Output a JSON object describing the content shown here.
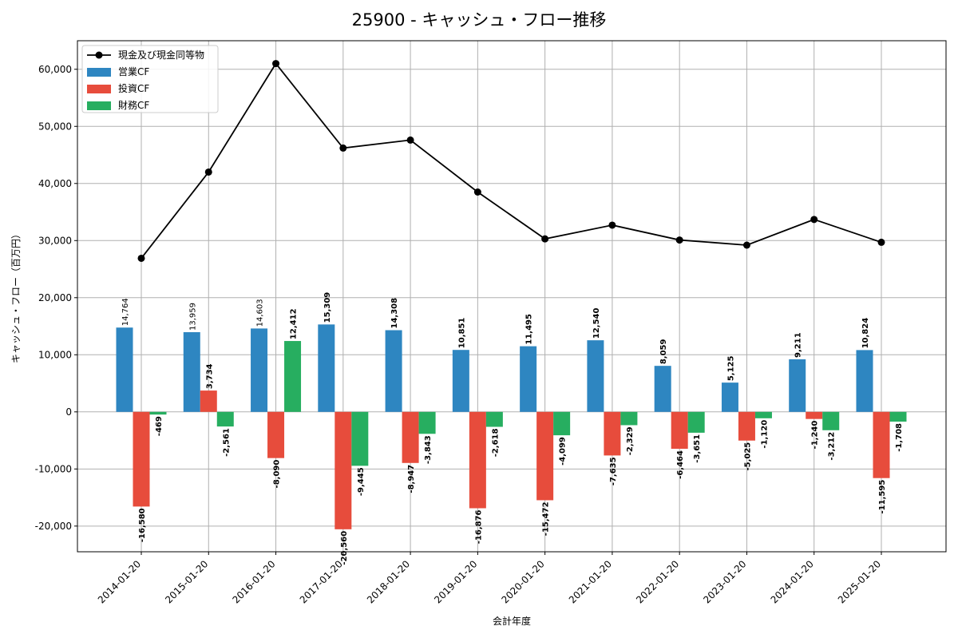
{
  "chart_data": {
    "type": "bar",
    "title": "25900 - キャッシュ・フロー推移",
    "xlabel": "会計年度",
    "ylabel": "キャッシュ・フロー（百万円）",
    "ylim": [
      -24500,
      65000
    ],
    "yticks": [
      -20000,
      -10000,
      0,
      10000,
      20000,
      30000,
      40000,
      50000,
      60000
    ],
    "ytick_labels": [
      "-20,000",
      "-10,000",
      "0",
      "10,000",
      "20,000",
      "30,000",
      "40,000",
      "50,000",
      "60,000"
    ],
    "grid": true,
    "legend_placement": "top-left",
    "categories": [
      "2014-01-20",
      "2015-01-20",
      "2016-01-20",
      "2017-01-20",
      "2018-01-20",
      "2019-01-20",
      "2020-01-20",
      "2021-01-20",
      "2022-01-20",
      "2023-01-20",
      "2024-01-20",
      "2025-01-20"
    ],
    "series": [
      {
        "name": "営業CF",
        "kind": "bar",
        "color": "#2e86c1",
        "values": [
          14764,
          13959,
          14603,
          15309,
          14308,
          10851,
          11495,
          12540,
          8059,
          5125,
          9211,
          10824
        ],
        "labels": [
          "14,764",
          "13,959",
          "14,603",
          "15,309",
          "14,308",
          "10,851",
          "11,495",
          "12,540",
          "8,059",
          "5,125",
          "9,211",
          "10,824"
        ]
      },
      {
        "name": "投資CF",
        "kind": "bar",
        "color": "#e74c3c",
        "values": [
          -16580,
          3734,
          -8090,
          -20560,
          -8947,
          -16876,
          -15472,
          -7635,
          -6464,
          -5025,
          -1240,
          -11595
        ],
        "labels": [
          "-16,580",
          "3,734",
          "-8,090",
          "-20,560",
          "-8,947",
          "-16,876",
          "-15,472",
          "-7,635",
          "-6,464",
          "-5,025",
          "-1,240",
          "-11,595"
        ]
      },
      {
        "name": "財務CF",
        "kind": "bar",
        "color": "#27ae60",
        "values": [
          -469,
          -2561,
          12412,
          -9445,
          -3843,
          -2618,
          -4099,
          -2329,
          -3651,
          -1120,
          -3212,
          -1708
        ],
        "labels": [
          "-469",
          "-2,561",
          "12,412",
          "-9,445",
          "-3,843",
          "-2,618",
          "-4,099",
          "-2,329",
          "-3,651",
          "-1,120",
          "-3,212",
          "-1,708"
        ]
      },
      {
        "name": "現金及び現金同等物",
        "kind": "line",
        "color": "#000000",
        "values": [
          26900,
          42000,
          61000,
          46200,
          47600,
          38500,
          30300,
          32700,
          30100,
          29200,
          33700,
          29700
        ]
      }
    ]
  }
}
